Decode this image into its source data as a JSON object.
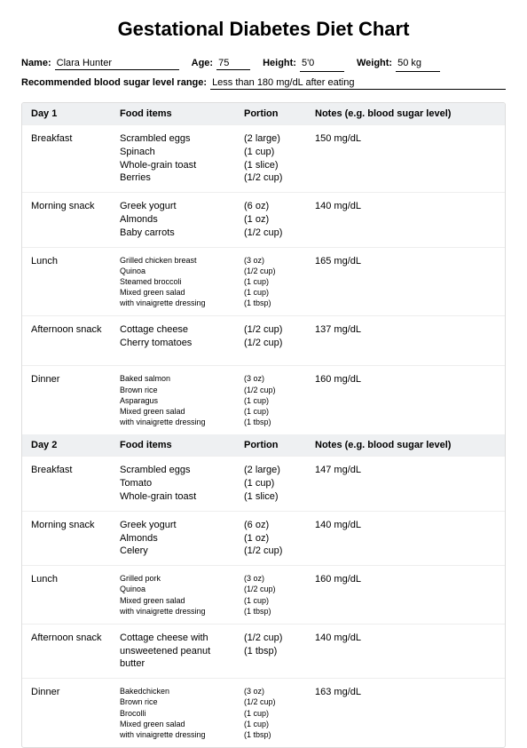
{
  "title": "Gestational Diabetes Diet Chart",
  "info": {
    "nameLabel": "Name:",
    "name": "Clara Hunter",
    "ageLabel": "Age:",
    "age": "75",
    "heightLabel": "Height:",
    "height": "5'0",
    "weightLabel": "Weight:",
    "weight": "50 kg",
    "rangeLabel": "Recommended blood sugar level range:",
    "range": "Less than 180 mg/dL after eating"
  },
  "columns": {
    "food": "Food items",
    "portion": "Portion",
    "notes": "Notes (e.g. blood sugar level)"
  },
  "days": [
    {
      "label": "Day 1",
      "meals": [
        {
          "name": "Breakfast",
          "size": "med",
          "foods": [
            "Scrambled eggs",
            "Spinach",
            "Whole-grain toast",
            "Berries"
          ],
          "portions": [
            "(2 large)",
            "(1 cup)",
            "(1 slice)",
            "(1/2 cup)"
          ],
          "notes": "150 mg/dL"
        },
        {
          "name": "Morning snack",
          "size": "med",
          "foods": [
            "Greek yogurt",
            "Almonds",
            "Baby carrots"
          ],
          "portions": [
            "(6 oz)",
            "(1 oz)",
            "(1/2 cup)"
          ],
          "notes": "140 mg/dL"
        },
        {
          "name": "Lunch",
          "size": "small",
          "foods": [
            "Grilled chicken breast",
            "Quinoa",
            "Steamed broccoli",
            "Mixed green salad",
            "with vinaigrette dressing"
          ],
          "portions": [
            "(3 oz)",
            "(1/2 cup)",
            "(1 cup)",
            "(1 cup)",
            "(1 tbsp)"
          ],
          "notes": "165 mg/dL"
        },
        {
          "name": "Afternoon snack",
          "size": "med",
          "foods": [
            "Cottage cheese",
            "Cherry tomatoes"
          ],
          "portions": [
            "(1/2 cup)",
            "(1/2 cup)"
          ],
          "notes": "137 mg/dL"
        },
        {
          "name": "Dinner",
          "size": "small",
          "foods": [
            "Baked salmon",
            "Brown rice",
            "Asparagus",
            "Mixed green salad",
            "with vinaigrette dressing"
          ],
          "portions": [
            "(3 oz)",
            "(1/2 cup)",
            "(1 cup)",
            "(1 cup)",
            "(1 tbsp)"
          ],
          "notes": "160 mg/dL"
        }
      ]
    },
    {
      "label": "Day 2",
      "meals": [
        {
          "name": "Breakfast",
          "size": "med",
          "foods": [
            "Scrambled eggs",
            "Tomato",
            "Whole-grain toast"
          ],
          "portions": [
            "(2 large)",
            "(1 cup)",
            "(1 slice)"
          ],
          "notes": "147 mg/dL"
        },
        {
          "name": "Morning snack",
          "size": "med",
          "foods": [
            "Greek yogurt",
            "Almonds",
            "Celery"
          ],
          "portions": [
            "(6 oz)",
            "(1 oz)",
            "(1/2 cup)"
          ],
          "notes": "140 mg/dL"
        },
        {
          "name": "Lunch",
          "size": "small",
          "foods": [
            "Grilled pork",
            "Quinoa",
            "Mixed green salad",
            "with vinaigrette dressing"
          ],
          "portions": [
            "(3 oz)",
            "(1/2 cup)",
            "(1 cup)",
            "(1 tbsp)"
          ],
          "notes": "160 mg/dL"
        },
        {
          "name": "Afternoon snack",
          "size": "med",
          "foods": [
            "Cottage cheese with",
            "unsweetened peanut",
            "butter"
          ],
          "portions": [
            "(1/2 cup)",
            "(1 tbsp)"
          ],
          "notes": "140 mg/dL"
        },
        {
          "name": "Dinner",
          "size": "small",
          "foods": [
            "Bakedchicken",
            "Brown rice",
            "Brocolli",
            "Mixed green salad",
            "with vinaigrette dressing"
          ],
          "portions": [
            "(3 oz)",
            "(1/2 cup)",
            "(1 cup)",
            "(1 cup)",
            "(1 tbsp)"
          ],
          "notes": "163 mg/dL"
        }
      ]
    }
  ]
}
